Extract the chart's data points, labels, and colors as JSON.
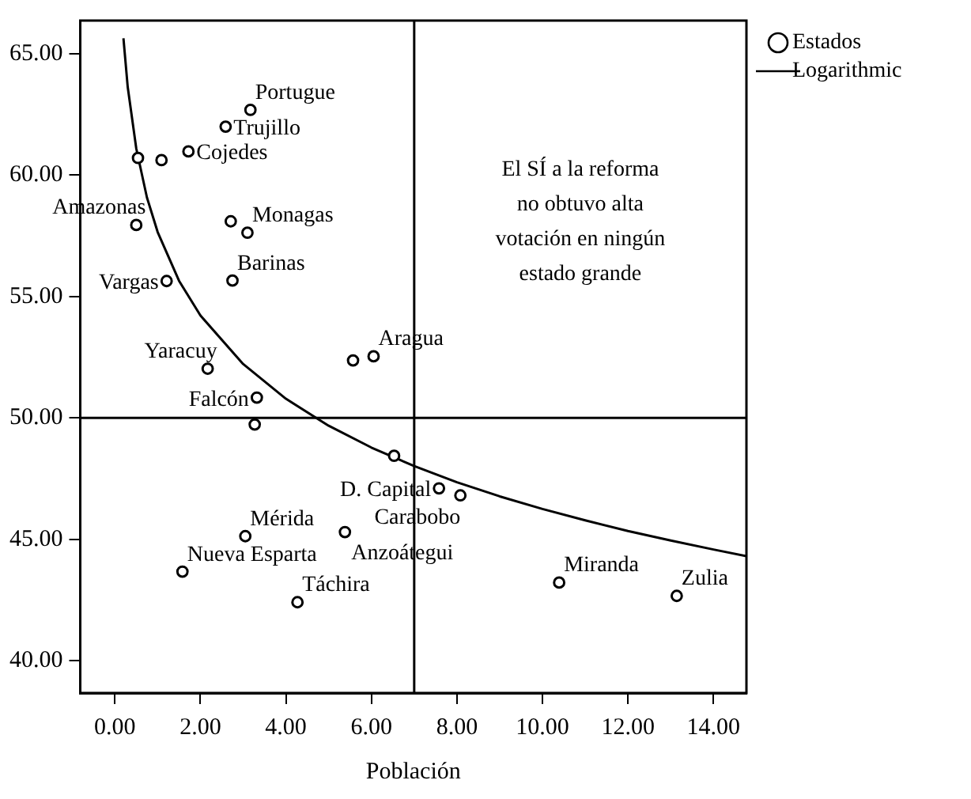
{
  "chart_data": {
    "type": "scatter",
    "xlabel": "Población",
    "legend": "top right",
    "marker": "circle",
    "xlim": [
      -0.81,
      14.77
    ],
    "ylim": [
      38.67,
      66.37
    ],
    "xticks": [
      {
        "value": 0,
        "label": "0.00"
      },
      {
        "value": 2,
        "label": "2.00"
      },
      {
        "value": 4,
        "label": "4.00"
      },
      {
        "value": 6,
        "label": "6.00"
      },
      {
        "value": 8,
        "label": "8.00"
      },
      {
        "value": 10,
        "label": "10.00"
      },
      {
        "value": 12,
        "label": "12.00"
      },
      {
        "value": 14,
        "label": "14.00"
      }
    ],
    "yticks": [
      {
        "value": 40,
        "label": "40.00"
      },
      {
        "value": 45,
        "label": "45.00"
      },
      {
        "value": 50,
        "label": "50.00"
      },
      {
        "value": 55,
        "label": "55.00"
      },
      {
        "value": 60,
        "label": "60.00"
      },
      {
        "value": 65,
        "label": "65.00"
      }
    ],
    "series": [
      {
        "name": "Estados",
        "type": "scatter",
        "color": "#000000",
        "x": [
          3.17,
          2.59,
          1.72,
          1.09,
          0.54,
          0.5,
          2.71,
          3.1,
          1.21,
          2.75,
          2.17,
          5.57,
          6.05,
          3.32,
          3.27,
          6.53,
          7.58,
          8.08,
          3.05,
          5.38,
          1.58,
          4.27,
          10.39,
          13.14
        ],
        "values": [
          62.69,
          62.0,
          60.98,
          60.62,
          60.71,
          57.95,
          58.1,
          57.63,
          55.64,
          55.66,
          52.03,
          52.37,
          52.54,
          50.84,
          49.73,
          48.44,
          47.1,
          46.81,
          45.13,
          45.3,
          43.67,
          42.41,
          43.22,
          42.67
        ]
      },
      {
        "name": "Logarithmic",
        "type": "line",
        "color": "#000000",
        "marker": "none",
        "x": [
          0.2,
          0.3,
          0.5,
          0.75,
          1,
          1.5,
          2,
          3,
          4,
          5,
          6,
          7,
          8,
          9,
          10,
          11,
          12,
          13,
          14,
          14.77
        ],
        "values": [
          65.64,
          63.63,
          61.1,
          59.08,
          57.66,
          55.65,
          54.22,
          52.22,
          50.79,
          49.68,
          48.78,
          48.02,
          47.35,
          46.77,
          46.25,
          45.78,
          45.34,
          44.95,
          44.58,
          44.31
        ]
      }
    ],
    "ref_lines": [
      {
        "axis": "x",
        "value": 7,
        "color": "#000000"
      },
      {
        "axis": "y",
        "value": 50,
        "color": "#000000"
      }
    ],
    "annotations": [
      {
        "text": "Portugue",
        "x": 3.17,
        "y": 62.69
      },
      {
        "text": "Trujillo",
        "x": 2.59,
        "y": 62.0
      },
      {
        "text": "Cojedes",
        "x": 1.72,
        "y": 60.98
      },
      {
        "text": "Amazonas",
        "x": 0.5,
        "y": 57.95
      },
      {
        "text": "Monagas",
        "x": 3.1,
        "y": 57.63
      },
      {
        "text": "Vargas",
        "x": 1.21,
        "y": 55.64
      },
      {
        "text": "Barinas",
        "x": 2.75,
        "y": 55.66
      },
      {
        "text": "Yaracuy",
        "x": 2.17,
        "y": 52.03
      },
      {
        "text": "Aragua",
        "x": 6.05,
        "y": 52.54
      },
      {
        "text": "Falcón",
        "x": 3.32,
        "y": 50.84
      },
      {
        "text": "D. Capital",
        "x": 7.58,
        "y": 47.1
      },
      {
        "text": "Carabobo",
        "x": 8.08,
        "y": 46.81
      },
      {
        "text": "Mérida",
        "x": 3.05,
        "y": 45.13
      },
      {
        "text": "Anzoátegui",
        "x": 5.38,
        "y": 45.3
      },
      {
        "text": "Nueva Esparta",
        "x": 1.58,
        "y": 43.67
      },
      {
        "text": "Táchira",
        "x": 4.27,
        "y": 42.41
      },
      {
        "text": "Miranda",
        "x": 10.39,
        "y": 43.22
      },
      {
        "text": "Zulia",
        "x": 13.14,
        "y": 42.67
      },
      "El SÍ a la reforma\nno obtuvo alta\nvotación en ningún\nestado grande"
    ]
  }
}
